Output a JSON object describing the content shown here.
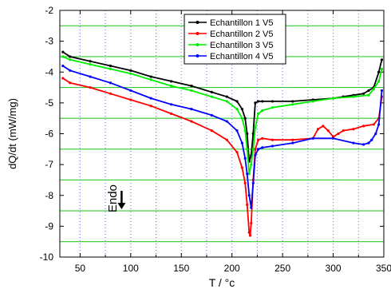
{
  "chart_data": {
    "type": "line",
    "xlabel": "T / °c",
    "ylabel": "dQ/dt (mW/mg)",
    "xlim": [
      30,
      350
    ],
    "ylim": [
      -10,
      -2
    ],
    "x_ticks": [
      50,
      100,
      150,
      200,
      250,
      300,
      350
    ],
    "y_ticks": [
      -10,
      -9,
      -8,
      -7,
      -6,
      -5,
      -4,
      -3,
      -2
    ],
    "grid": {
      "horizontal_lines": [
        -9.5,
        -8.5,
        -7.5,
        -6.5,
        -5.5,
        -4.5,
        -3.5,
        -2.5
      ],
      "horizontal_color": "#33cc33",
      "vertical_lines": [
        50,
        75,
        100,
        125,
        150,
        175,
        200,
        225,
        250,
        275,
        300,
        325
      ],
      "vertical_color": "#6b6bff",
      "vertical_style": "dotted"
    },
    "legend_position": "top-right",
    "annotation": {
      "text": "Endo",
      "arrow": "down",
      "arrow_x": 91,
      "arrow_y_from": -7.85,
      "arrow_y_to": -8.45,
      "text_x": 86,
      "text_y": -8.1
    },
    "series": [
      {
        "name": "Echantillon 1 V5",
        "color": "#000000",
        "x": [
          33,
          40,
          60,
          80,
          100,
          120,
          140,
          160,
          180,
          195,
          205,
          210,
          213,
          215,
          217,
          219,
          221,
          223,
          226,
          230,
          240,
          260,
          280,
          300,
          310,
          320,
          330,
          335,
          340,
          345,
          348
        ],
        "y": [
          -3.35,
          -3.5,
          -3.65,
          -3.8,
          -3.95,
          -4.15,
          -4.3,
          -4.45,
          -4.65,
          -4.8,
          -4.95,
          -5.2,
          -5.5,
          -6.0,
          -6.9,
          -6.7,
          -6.0,
          -5.0,
          -4.95,
          -4.95,
          -4.95,
          -4.95,
          -4.9,
          -4.85,
          -4.8,
          -4.75,
          -4.7,
          -4.6,
          -4.5,
          -4.0,
          -3.6
        ]
      },
      {
        "name": "Echantillon 2 V5",
        "color": "#ff0000",
        "x": [
          33,
          40,
          60,
          80,
          100,
          120,
          140,
          160,
          180,
          195,
          205,
          210,
          213,
          215,
          217,
          218,
          219,
          221,
          223,
          226,
          230,
          240,
          260,
          280,
          285,
          290,
          295,
          300,
          305,
          310,
          320,
          330,
          340,
          345,
          348
        ],
        "y": [
          -4.2,
          -4.35,
          -4.5,
          -4.7,
          -4.9,
          -5.1,
          -5.35,
          -5.6,
          -5.9,
          -6.2,
          -6.6,
          -7.1,
          -7.6,
          -8.3,
          -9.2,
          -9.3,
          -8.9,
          -7.5,
          -6.5,
          -6.2,
          -6.15,
          -6.2,
          -6.2,
          -6.15,
          -5.85,
          -5.75,
          -5.9,
          -6.1,
          -6.0,
          -5.9,
          -5.85,
          -5.75,
          -5.7,
          -5.5,
          -4.8
        ]
      },
      {
        "name": "Echantillon 3 V5",
        "color": "#00ee00",
        "x": [
          33,
          40,
          60,
          80,
          100,
          120,
          140,
          160,
          180,
          195,
          205,
          210,
          213,
          215,
          217,
          219,
          221,
          223,
          226,
          230,
          240,
          260,
          280,
          300,
          320,
          335,
          340,
          345,
          348
        ],
        "y": [
          -3.5,
          -3.6,
          -3.75,
          -3.9,
          -4.05,
          -4.25,
          -4.45,
          -4.6,
          -4.8,
          -4.95,
          -5.2,
          -5.5,
          -5.9,
          -6.5,
          -7.3,
          -7.0,
          -6.5,
          -5.8,
          -5.35,
          -5.25,
          -5.15,
          -5.05,
          -4.95,
          -4.85,
          -4.8,
          -4.75,
          -4.55,
          -4.3,
          -3.9
        ]
      },
      {
        "name": "Echantillon 4 V5",
        "color": "#0000ff",
        "x": [
          33,
          40,
          60,
          80,
          100,
          120,
          140,
          160,
          180,
          195,
          205,
          210,
          213,
          215,
          217,
          219,
          221,
          223,
          226,
          230,
          240,
          260,
          280,
          300,
          320,
          330,
          335,
          338,
          342,
          345,
          348
        ],
        "y": [
          -3.8,
          -3.95,
          -4.15,
          -4.35,
          -4.6,
          -4.85,
          -5.05,
          -5.2,
          -5.4,
          -5.6,
          -5.9,
          -6.3,
          -6.8,
          -7.3,
          -8.0,
          -8.4,
          -7.6,
          -6.7,
          -6.5,
          -6.45,
          -6.4,
          -6.3,
          -6.15,
          -6.15,
          -6.3,
          -6.35,
          -6.3,
          -6.2,
          -6.0,
          -5.7,
          -4.6
        ]
      }
    ]
  }
}
